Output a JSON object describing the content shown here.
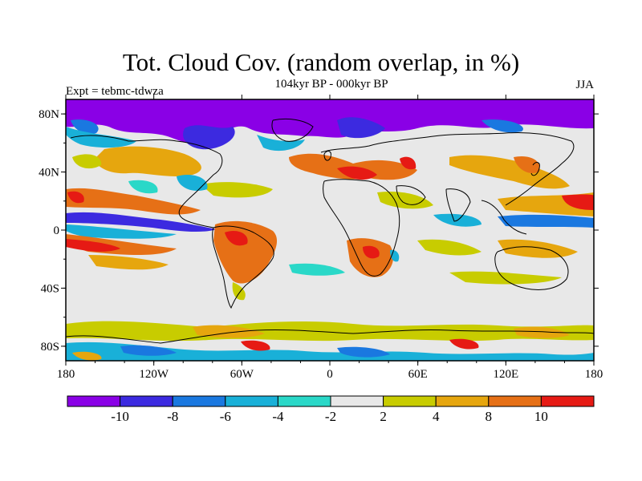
{
  "title": "Tot. Cloud Cov. (random overlap, in %)",
  "subtitle": "104kyr BP - 000kyr BP",
  "experiment_label": "Expt = tebmc-tdwza",
  "season_label": "JJA",
  "map": {
    "projection": "cylindrical-equidistant",
    "lon_range": [
      -180,
      180
    ],
    "lat_range": [
      -90,
      90
    ],
    "lat_ticks": [
      {
        "label": "80N",
        "lat": 80
      },
      {
        "label": "40N",
        "lat": 40
      },
      {
        "label": "0",
        "lat": 0
      },
      {
        "label": "40S",
        "lat": -40
      },
      {
        "label": "80S",
        "lat": -80
      }
    ],
    "lon_ticks": [
      {
        "label": "180",
        "lon": -180
      },
      {
        "label": "120W",
        "lon": -120
      },
      {
        "label": "60W",
        "lon": -60
      },
      {
        "label": "0",
        "lon": 0
      },
      {
        "label": "60E",
        "lon": 60
      },
      {
        "label": "120E",
        "lon": 120
      },
      {
        "label": "180",
        "lon": 180
      }
    ],
    "background_color": "#e8e8e8"
  },
  "colorbar": {
    "colors": [
      "#8a00e6",
      "#3c2ae0",
      "#1a78e0",
      "#19b0d8",
      "#2ad8c8",
      "#e8e8e8",
      "#c8cc00",
      "#e6a60e",
      "#e67016",
      "#e61a14"
    ],
    "labels": [
      "-10",
      "-8",
      "-6",
      "-4",
      "-2",
      "2",
      "4",
      "8",
      "10"
    ]
  },
  "fields": [
    {
      "name": "arctic-cloud-decrease",
      "level": "-10",
      "color": "#8a00e6"
    },
    {
      "name": "tropical-pacific-increase",
      "level": "8",
      "color": "#e67016"
    },
    {
      "name": "south-america-increase",
      "level": "8",
      "color": "#e67016"
    },
    {
      "name": "southern-ocean-band",
      "level": "4",
      "color": "#c8cc00"
    }
  ]
}
